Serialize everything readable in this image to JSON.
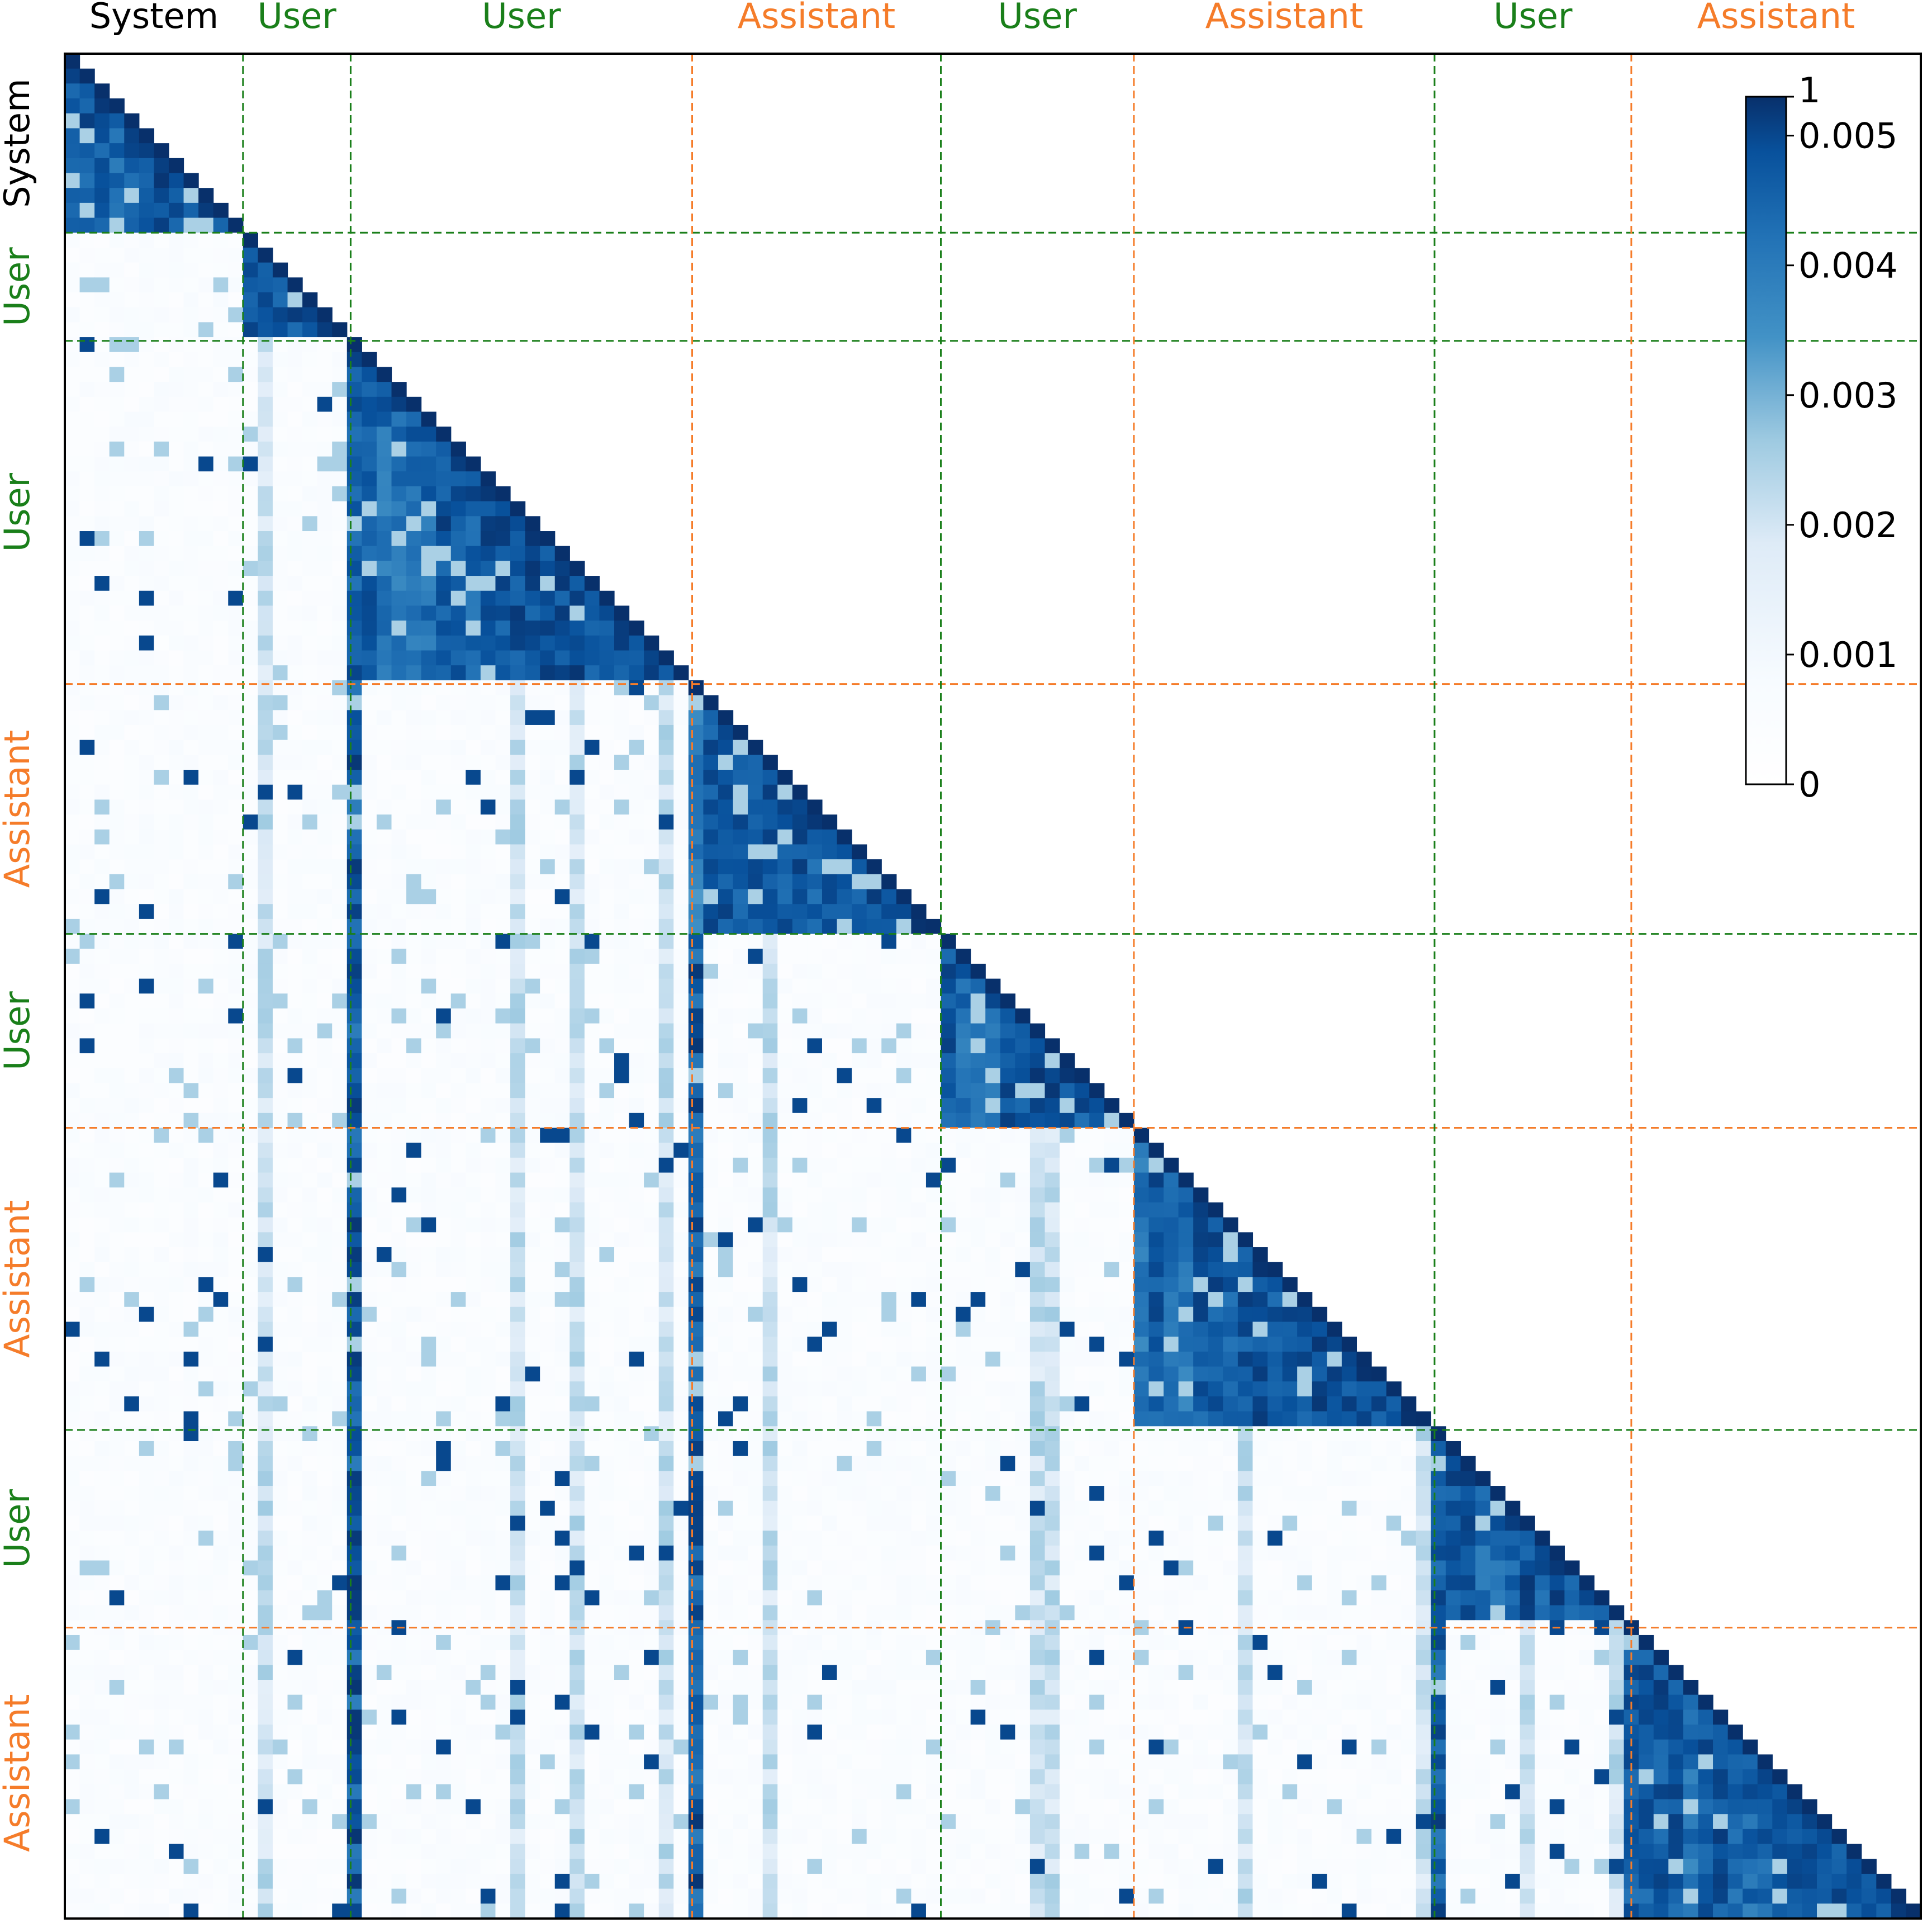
{
  "chart_data": {
    "type": "heatmap",
    "description_of_axes": "Causal (lower-triangular) token attention map; both axes are token positions grouped by conversation segment.",
    "segments": [
      {
        "label": "System",
        "role": "system",
        "color": "#000000",
        "start": 0,
        "end": 48
      },
      {
        "label": "User",
        "role": "user",
        "color": "#1a7f1a",
        "start": 48,
        "end": 77
      },
      {
        "label": "User",
        "role": "user",
        "color": "#1a7f1a",
        "start": 77,
        "end": 169
      },
      {
        "label": "Assistant",
        "role": "assistant",
        "color": "#f57c2a",
        "start": 169,
        "end": 236
      },
      {
        "label": "User",
        "role": "user",
        "color": "#1a7f1a",
        "start": 236,
        "end": 288
      },
      {
        "label": "Assistant",
        "role": "assistant",
        "color": "#f57c2a",
        "start": 288,
        "end": 369
      },
      {
        "label": "User",
        "role": "user",
        "color": "#1a7f1a",
        "start": 369,
        "end": 422
      },
      {
        "label": "Assistant",
        "role": "assistant",
        "color": "#f57c2a",
        "start": 422,
        "end": 500
      }
    ],
    "total_tokens": 500,
    "divider_style": "dashed",
    "colormap": "Blues",
    "colorbar": {
      "vmin": 0,
      "vmax": 0.0053,
      "ticks": [
        0,
        0.001,
        0.002,
        0.003,
        0.004,
        0.005
      ],
      "tick_labels": [
        "0",
        "0.001",
        "0.002",
        "0.003",
        "0.004",
        "0.005"
      ],
      "top_label": "1",
      "placement": "top-right inside plot"
    },
    "colors": {
      "low": "#f7fbff",
      "mid": "#6baed6",
      "high": "#08306b",
      "user": "#1a7f1a",
      "assistant": "#f57c2a",
      "system": "#000000"
    }
  }
}
